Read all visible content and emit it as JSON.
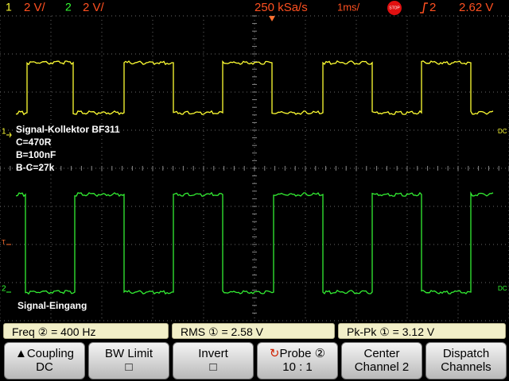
{
  "status_bar": {
    "ch1_label": "1",
    "ch1_scale": "2 V/",
    "ch2_label": "2",
    "ch2_scale": "2 V/",
    "sample_rate": "250 kSa/s",
    "timebase": "1ms/",
    "run_state": "STOP",
    "trigger_source": "2",
    "trigger_level": "2.62 V"
  },
  "markers": {
    "ch1_ground": "1",
    "ch2_ground": "2",
    "trigger": "T",
    "ch1_coupling": "DC",
    "ch2_coupling": "DC"
  },
  "annotations": [
    "Signal-Kollektor BF311",
    "C=470R",
    "B=100nF",
    "B-C=27k",
    "Signal-Eingang"
  ],
  "measurements": [
    "Freq ② = 400 Hz",
    "RMS ① = 2.58 V",
    "Pk-Pk ① = 3.12 V"
  ],
  "softkeys": [
    {
      "label": "Coupling",
      "value": "DC"
    },
    {
      "label": "BW Limit",
      "value": "□"
    },
    {
      "label": "Invert",
      "value": "□"
    },
    {
      "label": "Probe ②",
      "value": "10 : 1"
    },
    {
      "label": "Center",
      "value": "Channel 2"
    },
    {
      "label": "Dispatch",
      "value": "Channels"
    }
  ]
}
